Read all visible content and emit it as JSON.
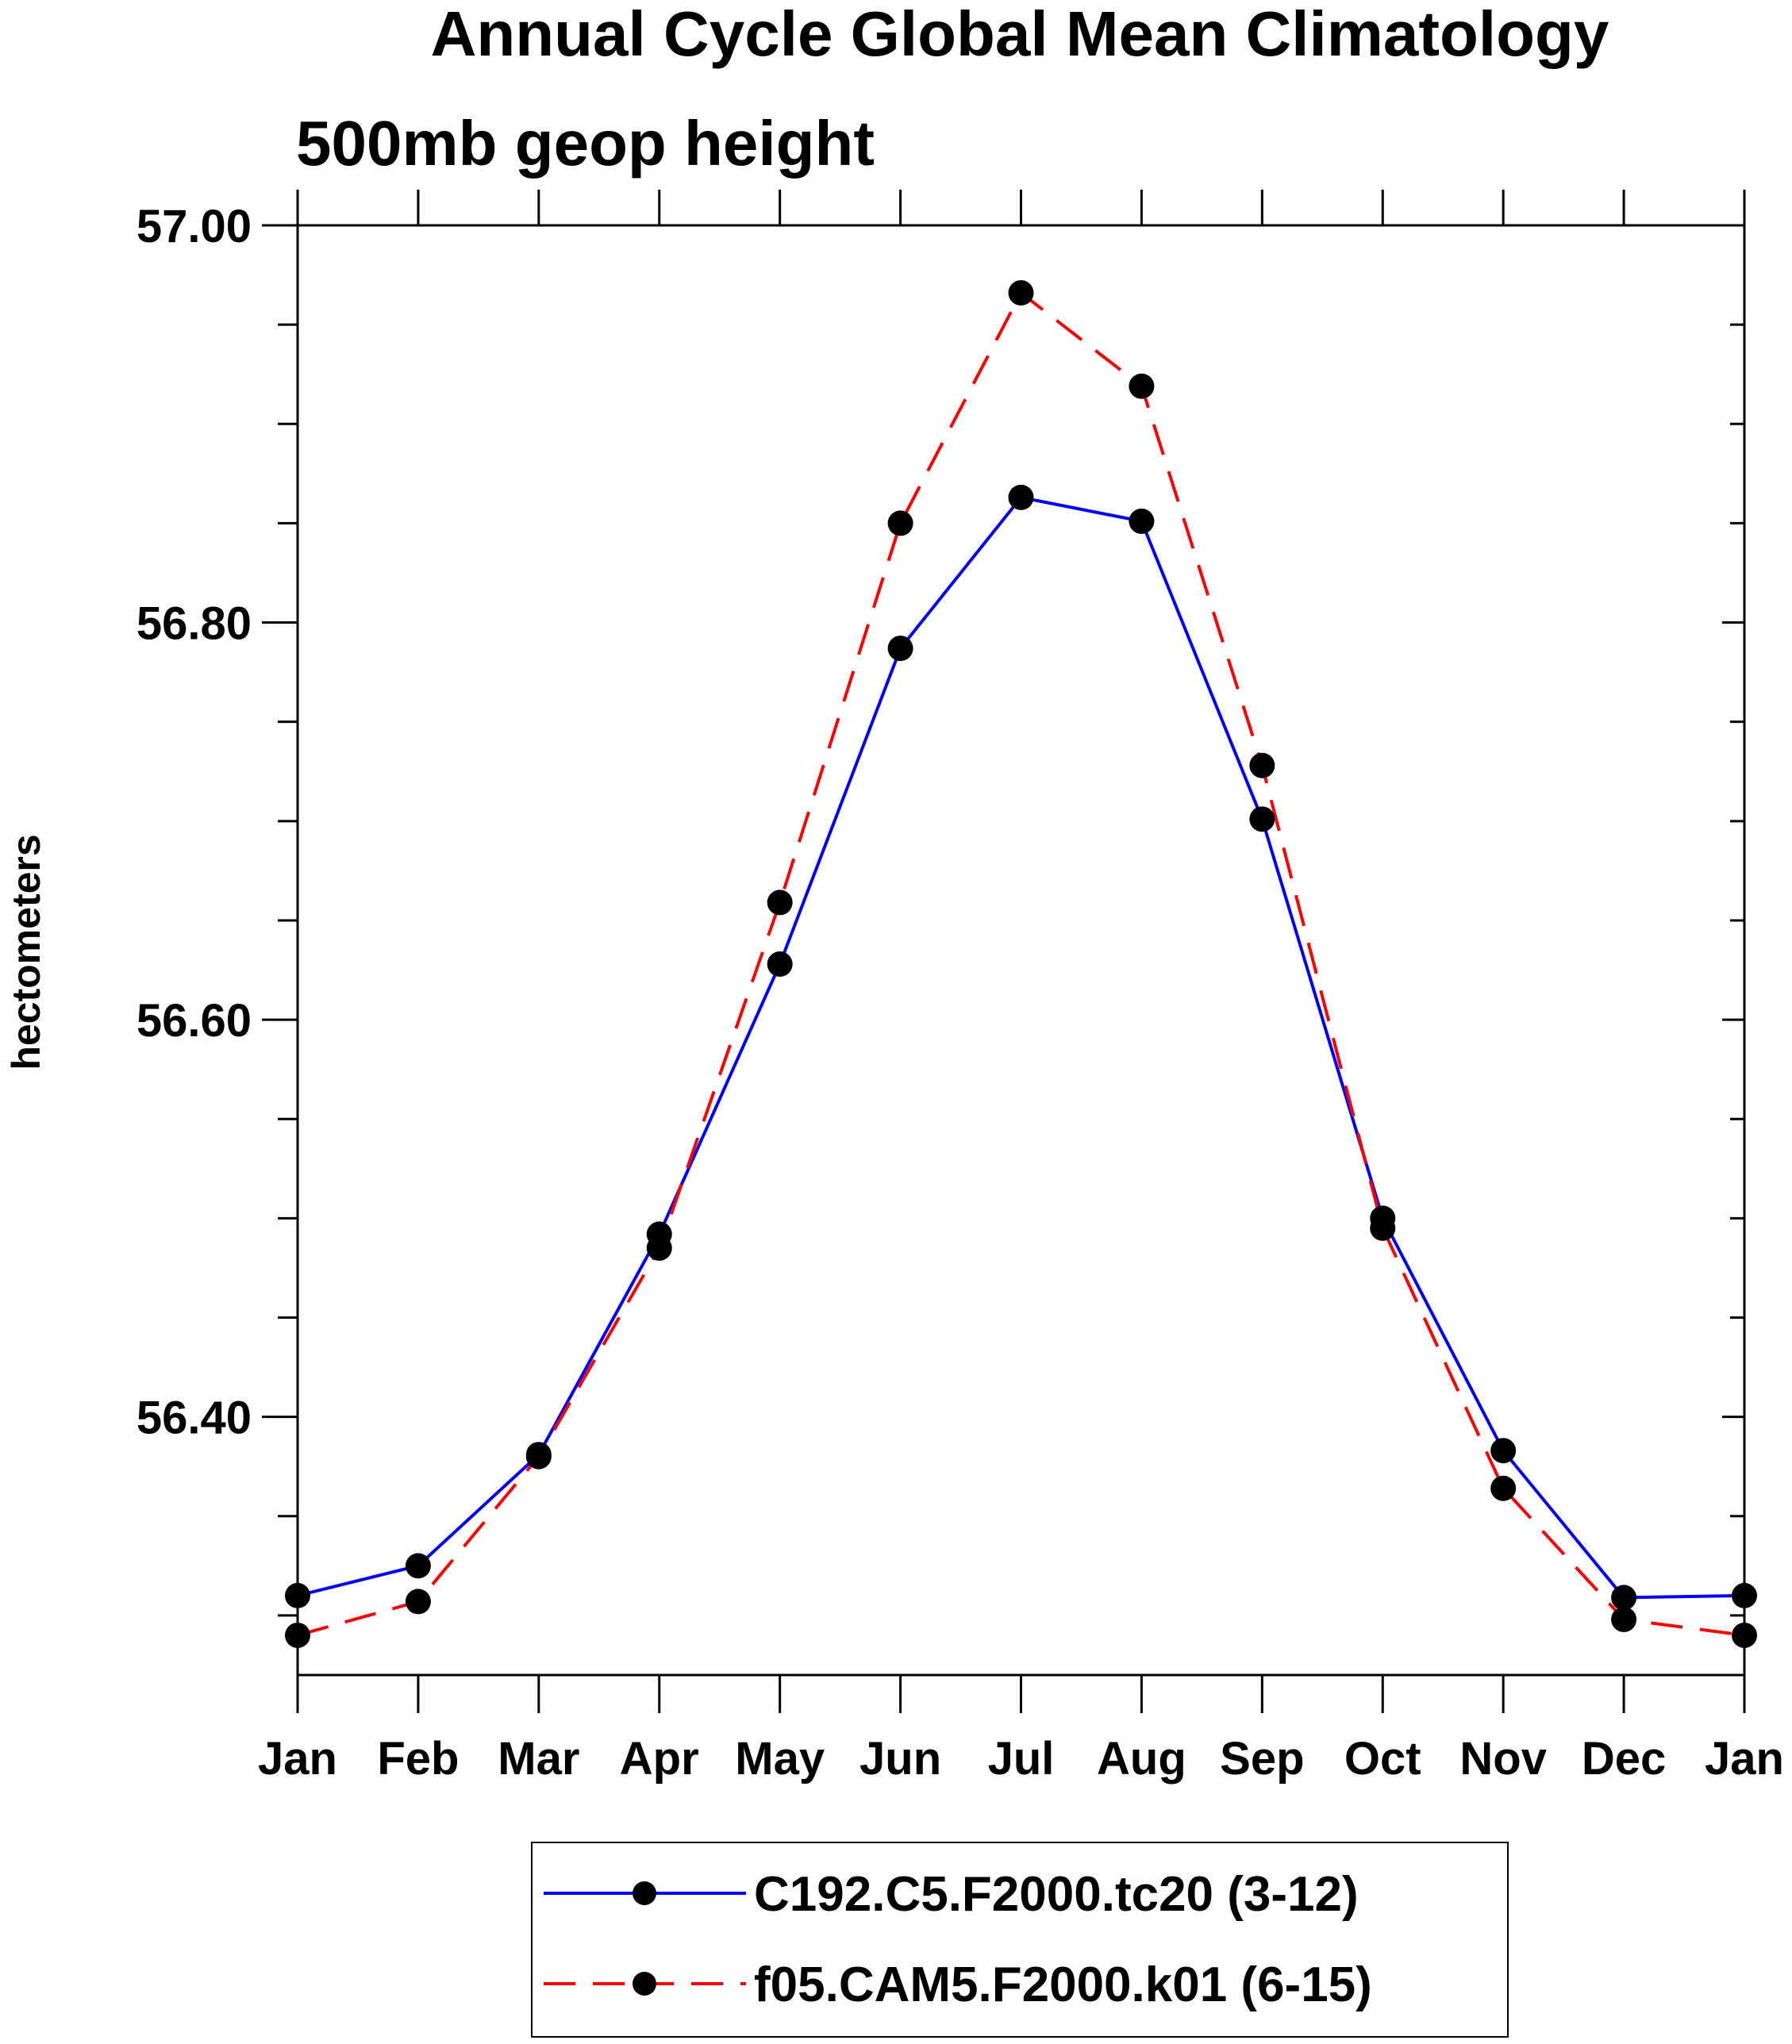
{
  "chart_data": {
    "type": "line",
    "title": "Annual Cycle Global Mean Climatology",
    "subtitle": "500mb geop height",
    "xlabel": "",
    "ylabel": "hectometers",
    "categories": [
      "Jan",
      "Feb",
      "Mar",
      "Apr",
      "May",
      "Jun",
      "Jul",
      "Aug",
      "Sep",
      "Oct",
      "Nov",
      "Dec",
      "Jan"
    ],
    "ylim": [
      56.27,
      57.0
    ],
    "yticks_major": [
      56.4,
      56.6,
      56.8,
      57.0
    ],
    "ytick_labels": [
      "56.40",
      "56.60",
      "56.80",
      "57.00"
    ],
    "yticks_minor": [
      56.3,
      56.35,
      56.45,
      56.5,
      56.55,
      56.65,
      56.7,
      56.75,
      56.85,
      56.9,
      56.95
    ],
    "grid": false,
    "legend_position": "bottom-center",
    "series": [
      {
        "name": "C192.C5.F2000.tc20 (3-12)",
        "color": "#0000ff",
        "dash": "solid",
        "marker": "filled-circle",
        "values": [
          56.31,
          56.325,
          56.381,
          56.492,
          56.628,
          56.787,
          56.863,
          56.851,
          56.701,
          56.5,
          56.383,
          56.309,
          56.31
        ]
      },
      {
        "name": "f05.CAM5.F2000.k01 (6-15)",
        "color": "#ff0000",
        "dash": "dashed",
        "marker": "filled-circle",
        "values": [
          56.29,
          56.307,
          56.38,
          56.485,
          56.659,
          56.85,
          56.966,
          56.919,
          56.728,
          56.495,
          56.364,
          56.298,
          56.29
        ]
      }
    ]
  }
}
